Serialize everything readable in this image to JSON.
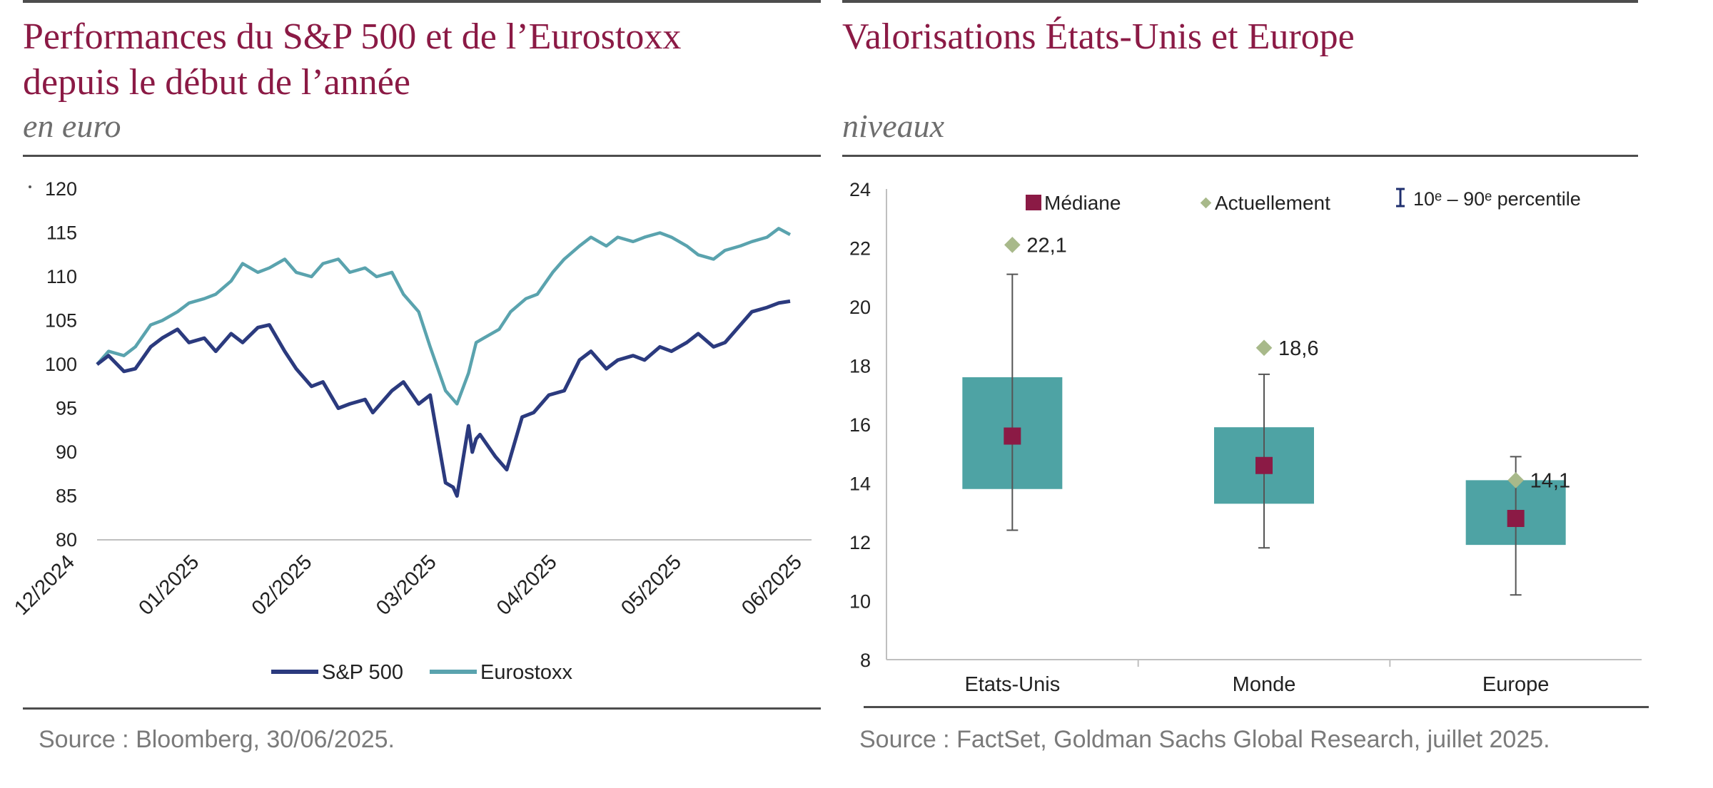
{
  "left": {
    "title_line1": "Performances du S&P 500 et de l’Eurostoxx",
    "title_line2": "depuis le début de l’année",
    "subtitle": "en euro",
    "source": "Source : Bloomberg, 30/06/2025."
  },
  "right": {
    "title": "Valorisations États-Unis et Europe",
    "subtitle": "niveaux",
    "source": "Source : FactSet, Goldman Sachs Global Research, juillet 2025."
  },
  "colors": {
    "title": "#8b1a45",
    "sp500": "#2b3a7e",
    "eurostoxx": "#5aa3ae",
    "box": "#4ea3a4",
    "median": "#8b1a45",
    "current": "#a8b98a",
    "axis": "#bfbfbf"
  },
  "chart_data": [
    {
      "type": "line",
      "ylim": [
        80,
        120
      ],
      "y_ticks": [
        120,
        115,
        110,
        105,
        100,
        95,
        90,
        85,
        80
      ],
      "x_ticks": [
        "12/2024",
        "01/2025",
        "02/2025",
        "03/2025",
        "04/2025",
        "05/2025",
        "06/2025"
      ],
      "legend_position": "bottom",
      "series": [
        {
          "name": "S&P 500",
          "x": [
            "2024-12-31",
            "2025-01-03",
            "2025-01-07",
            "2025-01-10",
            "2025-01-14",
            "2025-01-17",
            "2025-01-21",
            "2025-01-24",
            "2025-01-28",
            "2025-01-31",
            "2025-02-04",
            "2025-02-07",
            "2025-02-11",
            "2025-02-14",
            "2025-02-18",
            "2025-02-21",
            "2025-02-25",
            "2025-02-28",
            "2025-03-04",
            "2025-03-07",
            "2025-03-11",
            "2025-03-13",
            "2025-03-18",
            "2025-03-21",
            "2025-03-25",
            "2025-03-28",
            "2025-04-01",
            "2025-04-03",
            "2025-04-04",
            "2025-04-07",
            "2025-04-08",
            "2025-04-09",
            "2025-04-10",
            "2025-04-14",
            "2025-04-17",
            "2025-04-21",
            "2025-04-24",
            "2025-04-28",
            "2025-05-02",
            "2025-05-06",
            "2025-05-09",
            "2025-05-13",
            "2025-05-16",
            "2025-05-20",
            "2025-05-23",
            "2025-05-27",
            "2025-05-30",
            "2025-06-03",
            "2025-06-06",
            "2025-06-10",
            "2025-06-13",
            "2025-06-17",
            "2025-06-20",
            "2025-06-24",
            "2025-06-27",
            "2025-06-30"
          ],
          "values": [
            100,
            101,
            99.2,
            99.5,
            102,
            103,
            104,
            102.5,
            103,
            101.5,
            103.5,
            102.5,
            104.2,
            104.5,
            101.5,
            99.5,
            97.5,
            98,
            95,
            95.5,
            96,
            94.5,
            97,
            98,
            95.5,
            96.5,
            86.5,
            86,
            85,
            93,
            90,
            91.5,
            92,
            89.5,
            88,
            94,
            94.5,
            96.5,
            97,
            100.5,
            101.5,
            99.5,
            100.5,
            101,
            100.5,
            102,
            101.5,
            102.5,
            103.5,
            102,
            102.5,
            104.5,
            106,
            106.5,
            107,
            107.2
          ]
        },
        {
          "name": "Eurostoxx",
          "x": [
            "2024-12-31",
            "2025-01-03",
            "2025-01-07",
            "2025-01-10",
            "2025-01-14",
            "2025-01-17",
            "2025-01-21",
            "2025-01-24",
            "2025-01-28",
            "2025-01-31",
            "2025-02-04",
            "2025-02-07",
            "2025-02-11",
            "2025-02-14",
            "2025-02-18",
            "2025-02-21",
            "2025-02-25",
            "2025-02-28",
            "2025-03-04",
            "2025-03-07",
            "2025-03-11",
            "2025-03-14",
            "2025-03-18",
            "2025-03-21",
            "2025-03-25",
            "2025-03-28",
            "2025-04-01",
            "2025-04-03",
            "2025-04-04",
            "2025-04-07",
            "2025-04-09",
            "2025-04-11",
            "2025-04-15",
            "2025-04-18",
            "2025-04-22",
            "2025-04-25",
            "2025-04-29",
            "2025-05-02",
            "2025-05-06",
            "2025-05-09",
            "2025-05-13",
            "2025-05-16",
            "2025-05-20",
            "2025-05-23",
            "2025-05-27",
            "2025-05-30",
            "2025-06-03",
            "2025-06-06",
            "2025-06-10",
            "2025-06-13",
            "2025-06-17",
            "2025-06-20",
            "2025-06-24",
            "2025-06-27",
            "2025-06-30"
          ],
          "values": [
            100,
            101.5,
            101,
            102,
            104.5,
            105,
            106,
            107,
            107.5,
            108,
            109.5,
            111.5,
            110.5,
            111,
            112,
            110.5,
            110,
            111.5,
            112,
            110.5,
            111,
            110,
            110.5,
            108,
            106,
            102,
            97,
            96,
            95.5,
            99,
            102.5,
            103,
            104,
            106,
            107.5,
            108,
            110.5,
            112,
            113.5,
            114.5,
            113.5,
            114.5,
            114,
            114.5,
            115,
            114.5,
            113.5,
            112.5,
            112,
            113,
            113.5,
            114,
            114.5,
            115.5,
            114.8
          ]
        }
      ]
    },
    {
      "type": "box",
      "ylim": [
        8,
        24
      ],
      "y_ticks": [
        24,
        22,
        20,
        18,
        16,
        14,
        12,
        10,
        8
      ],
      "categories": [
        "Etats-Unis",
        "Monde",
        "Europe"
      ],
      "legend": [
        "Médiane",
        "Actuellement",
        "10ᵉ – 90ᵉ percentile"
      ],
      "legend_sup": "e",
      "legend_position": "top",
      "box_low": [
        13.8,
        13.3,
        11.9
      ],
      "box_high": [
        17.6,
        15.9,
        14.1
      ],
      "p10": [
        12.4,
        11.8,
        10.2
      ],
      "p90": [
        21.1,
        17.7,
        14.9
      ],
      "median": [
        15.6,
        14.6,
        12.8
      ],
      "current": [
        22.1,
        18.6,
        14.1
      ],
      "current_labels": [
        "22,1",
        "18,6",
        "14,1"
      ]
    }
  ]
}
